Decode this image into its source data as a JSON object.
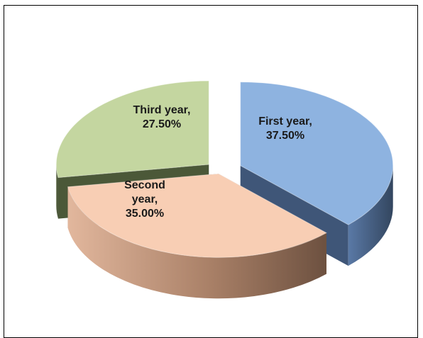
{
  "chart_data": {
    "type": "pie",
    "style": "3d-exploded",
    "categories": [
      "First year",
      "Second year",
      "Third year"
    ],
    "values": [
      37.5,
      35.0,
      27.5
    ],
    "unit": "%",
    "data_labels": [
      {
        "lines": [
          "First year,",
          "37.50%"
        ]
      },
      {
        "lines": [
          "Second",
          "year,",
          "35.00%"
        ]
      },
      {
        "lines": [
          "Third year,",
          "27.50%"
        ]
      }
    ],
    "colors": {
      "top": [
        "#8eb3e0",
        "#f8ceb4",
        "#c4d6a0"
      ],
      "side": [
        "#3f5678",
        "#7b5e4a",
        "#4b5838"
      ]
    },
    "legend": "none",
    "title": "",
    "grid": false
  }
}
